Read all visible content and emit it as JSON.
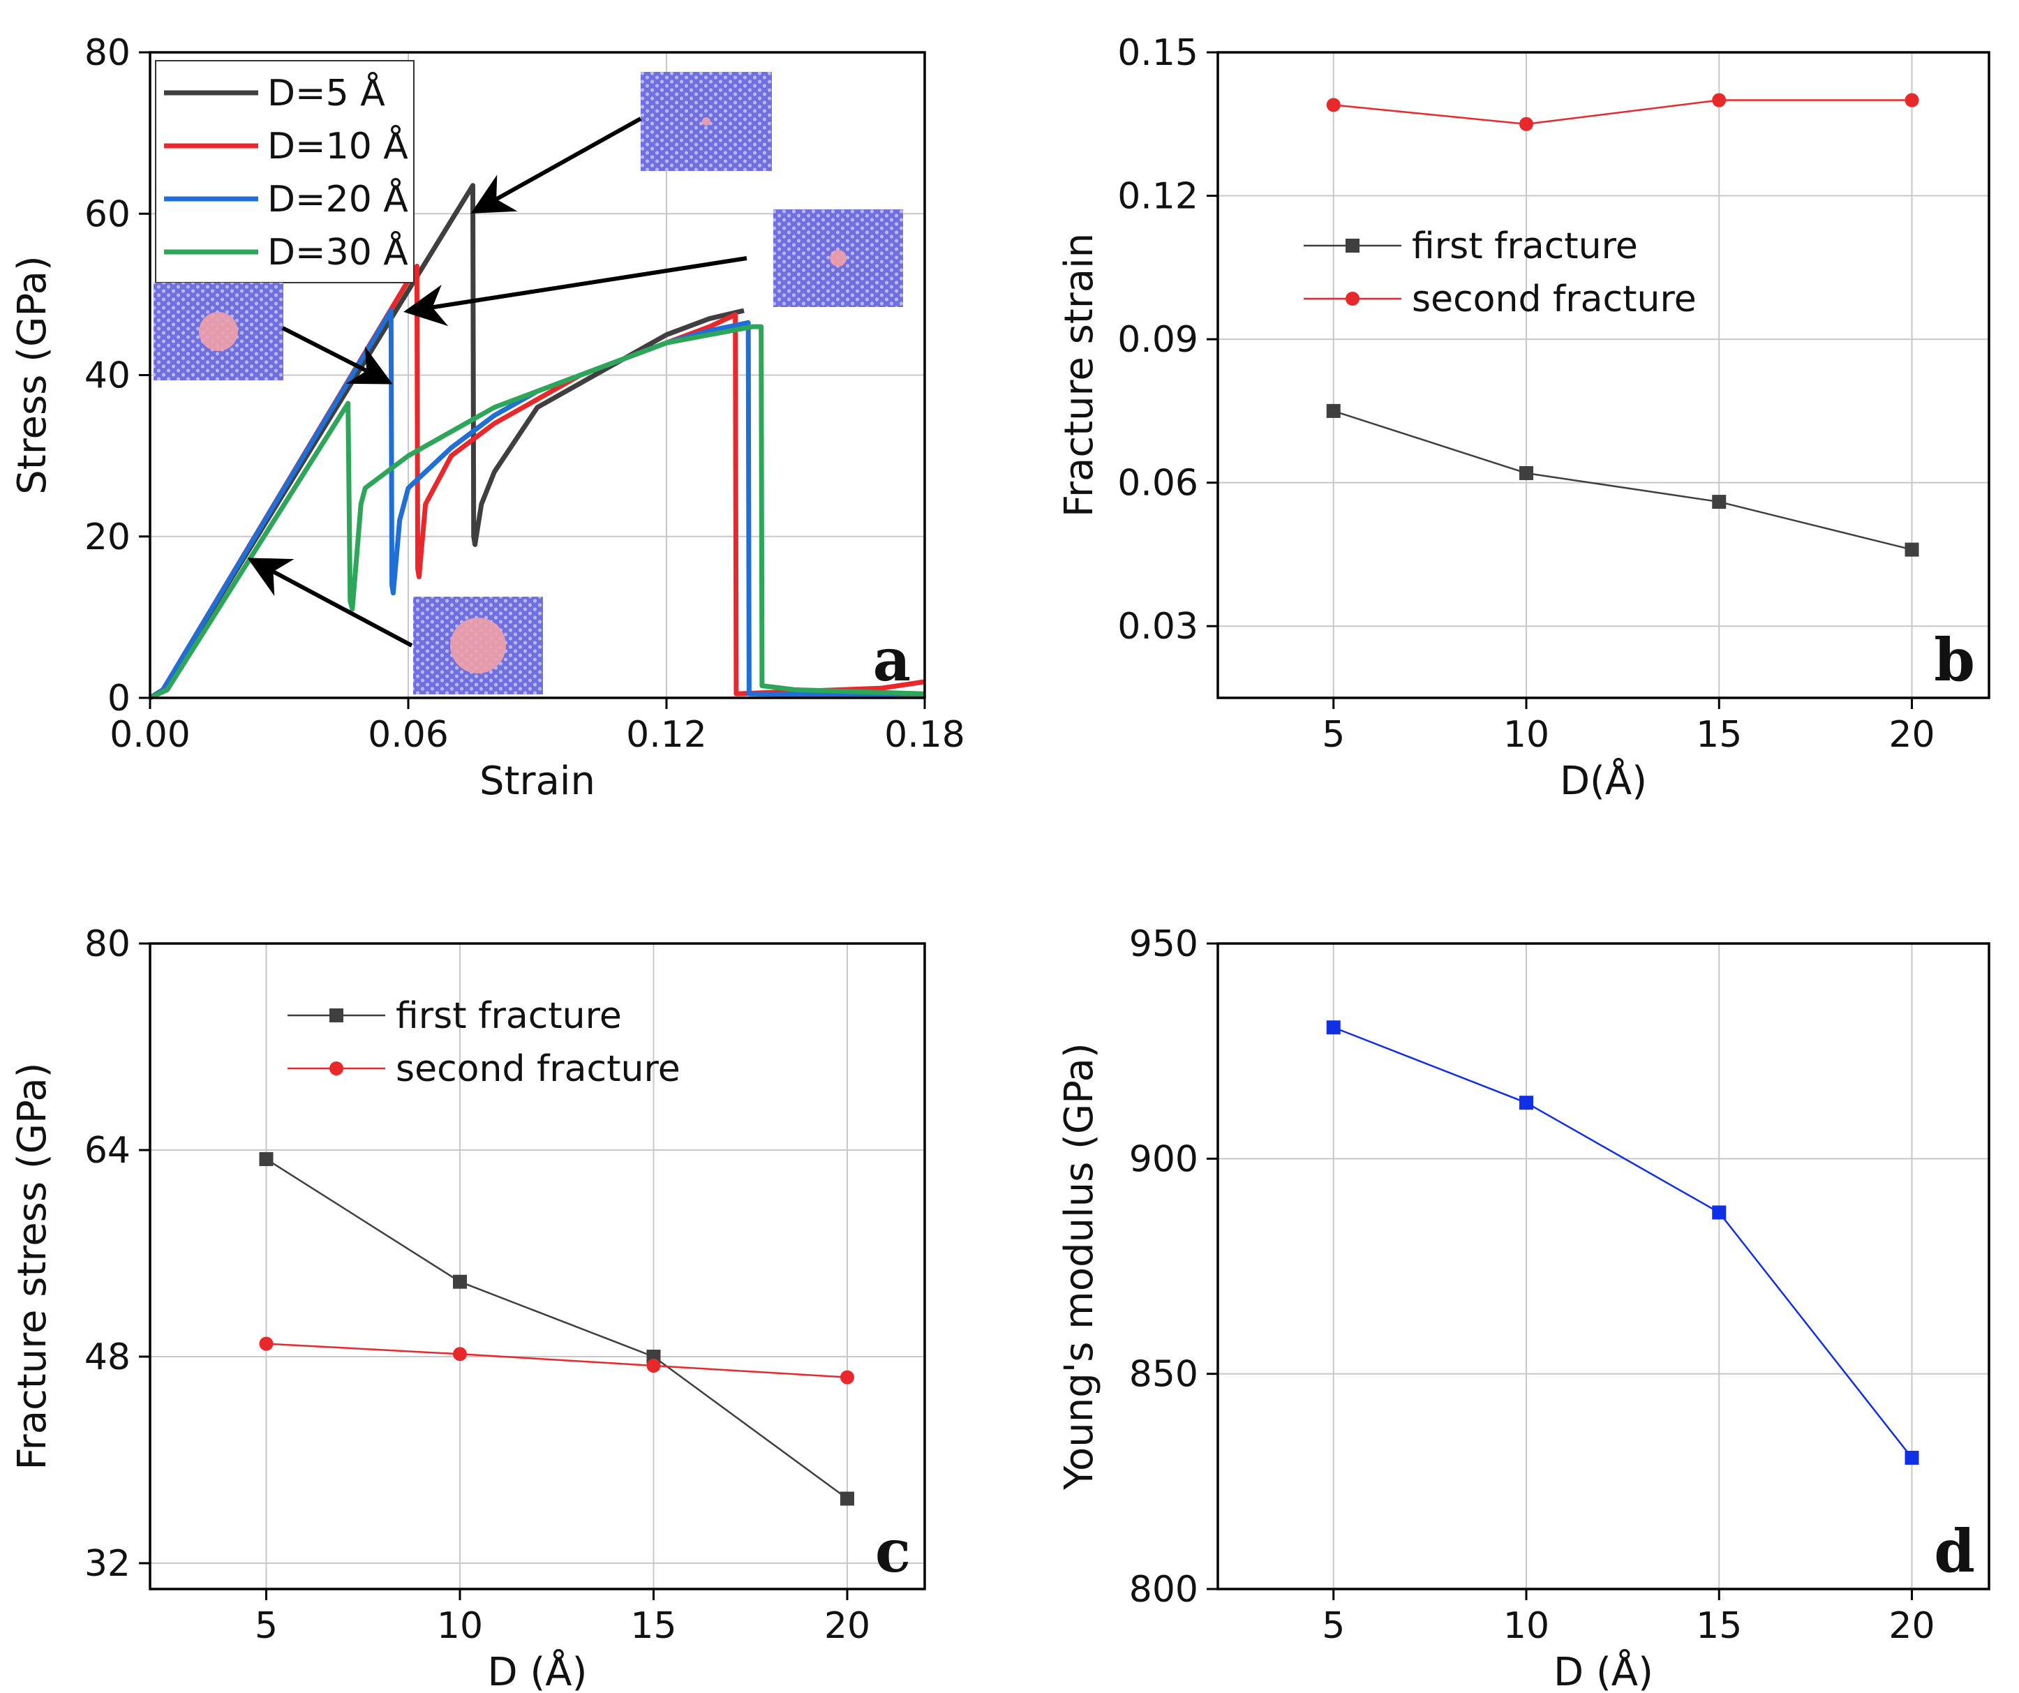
{
  "chart_data": [
    {
      "panel": "a",
      "type": "line",
      "xlabel": "Strain",
      "ylabel": "Stress (GPa)",
      "xlim": [
        0,
        0.18
      ],
      "ylim": [
        0,
        80
      ],
      "xticks": [
        "0.00",
        "0.06",
        "0.12",
        "0.18"
      ],
      "yticks": [
        "0",
        "20",
        "40",
        "60",
        "80"
      ],
      "grid": true,
      "legend_position": "top-left",
      "series": [
        {
          "name": "D=5 Å",
          "color": "#3f3f3f",
          "points": [
            [
              0,
              0
            ],
            [
              0.003,
              1
            ],
            [
              0.075,
              63.5
            ],
            [
              0.0752,
              20
            ],
            [
              0.0755,
              19
            ],
            [
              0.077,
              24
            ],
            [
              0.08,
              28
            ],
            [
              0.085,
              32
            ],
            [
              0.09,
              36
            ],
            [
              0.1,
              39
            ],
            [
              0.11,
              42
            ],
            [
              0.12,
              45
            ],
            [
              0.13,
              47
            ],
            [
              0.138,
              48
            ]
          ]
        },
        {
          "name": "D=10 Å",
          "color": "#e8282a",
          "points": [
            [
              0,
              0
            ],
            [
              0.003,
              1
            ],
            [
              0.062,
              53.5
            ],
            [
              0.0622,
              16
            ],
            [
              0.0625,
              15
            ],
            [
              0.064,
              24
            ],
            [
              0.07,
              30
            ],
            [
              0.08,
              34
            ],
            [
              0.09,
              37
            ],
            [
              0.1,
              40
            ],
            [
              0.11,
              42
            ],
            [
              0.12,
              44
            ],
            [
              0.13,
              46
            ],
            [
              0.136,
              47.5
            ],
            [
              0.1362,
              0.5
            ],
            [
              0.15,
              0.8
            ],
            [
              0.16,
              1
            ],
            [
              0.17,
              1.2
            ],
            [
              0.18,
              2
            ]
          ]
        },
        {
          "name": "D=20 Å",
          "color": "#1f6fd6",
          "points": [
            [
              0,
              0
            ],
            [
              0.003,
              1
            ],
            [
              0.056,
              48
            ],
            [
              0.0562,
              14
            ],
            [
              0.0565,
              13
            ],
            [
              0.058,
              22
            ],
            [
              0.06,
              26
            ],
            [
              0.07,
              31
            ],
            [
              0.08,
              35
            ],
            [
              0.09,
              38
            ],
            [
              0.1,
              40
            ],
            [
              0.11,
              42
            ],
            [
              0.12,
              44
            ],
            [
              0.13,
              45.5
            ],
            [
              0.139,
              46.5
            ],
            [
              0.1392,
              0.5
            ],
            [
              0.15,
              0.4
            ],
            [
              0.18,
              0.4
            ]
          ]
        },
        {
          "name": "D=30 Å",
          "color": "#2ea65a",
          "points": [
            [
              0,
              0
            ],
            [
              0.004,
              1
            ],
            [
              0.046,
              36.5
            ],
            [
              0.0465,
              12
            ],
            [
              0.047,
              11
            ],
            [
              0.049,
              24
            ],
            [
              0.05,
              26
            ],
            [
              0.055,
              28
            ],
            [
              0.06,
              30
            ],
            [
              0.07,
              33
            ],
            [
              0.08,
              36
            ],
            [
              0.09,
              38
            ],
            [
              0.1,
              40
            ],
            [
              0.11,
              42
            ],
            [
              0.12,
              44
            ],
            [
              0.13,
              45
            ],
            [
              0.14,
              46
            ],
            [
              0.142,
              46
            ],
            [
              0.1422,
              1.5
            ],
            [
              0.15,
              1
            ],
            [
              0.18,
              0.5
            ]
          ]
        }
      ],
      "panel_label": "a"
    },
    {
      "panel": "b",
      "type": "line",
      "xlabel": "D(Å)",
      "ylabel": "Fracture strain",
      "x": [
        5,
        10,
        15,
        20
      ],
      "xlim": [
        2,
        22
      ],
      "ylim": [
        0.015,
        0.15
      ],
      "xticks": [
        "5",
        "10",
        "15",
        "20"
      ],
      "yticks": [
        "0.03",
        "0.06",
        "0.09",
        "0.12",
        "0.15"
      ],
      "grid": true,
      "legend_position": "middle-left",
      "series": [
        {
          "name": "first fracture",
          "color": "#3f3f3f",
          "marker": "square",
          "values": [
            0.075,
            0.062,
            0.056,
            0.046
          ]
        },
        {
          "name": "second fracture",
          "color": "#e8282a",
          "marker": "circle",
          "values": [
            0.139,
            0.135,
            0.14,
            0.14
          ]
        }
      ],
      "panel_label": "b"
    },
    {
      "panel": "c",
      "type": "line",
      "xlabel": "D (Å)",
      "ylabel": "Fracture stress (GPa)",
      "x": [
        5,
        10,
        15,
        20
      ],
      "xlim": [
        2,
        22
      ],
      "ylim": [
        30,
        80
      ],
      "xticks": [
        "5",
        "10",
        "15",
        "20"
      ],
      "yticks": [
        "32",
        "48",
        "64",
        "80"
      ],
      "grid": true,
      "legend_position": "top-left",
      "series": [
        {
          "name": "first fracture",
          "color": "#3f3f3f",
          "marker": "square",
          "values": [
            63.3,
            53.8,
            48.0,
            37.0
          ]
        },
        {
          "name": "second fracture",
          "color": "#e8282a",
          "marker": "circle",
          "values": [
            49.0,
            48.2,
            47.3,
            46.4
          ]
        }
      ],
      "panel_label": "c"
    },
    {
      "panel": "d",
      "type": "line",
      "xlabel": "D (Å)",
      "ylabel": "Young's modulus (GPa)",
      "x": [
        5,
        10,
        15,
        20
      ],
      "xlim": [
        2,
        22
      ],
      "ylim": [
        800,
        950
      ],
      "xticks": [
        "5",
        "10",
        "15",
        "20"
      ],
      "yticks": [
        "800",
        "850",
        "900",
        "950"
      ],
      "grid": true,
      "series": [
        {
          "name": "Young's modulus",
          "color": "#1030e8",
          "marker": "square",
          "values": [
            930.5,
            913.0,
            887.5,
            830.5
          ]
        }
      ],
      "panel_label": "d"
    }
  ]
}
